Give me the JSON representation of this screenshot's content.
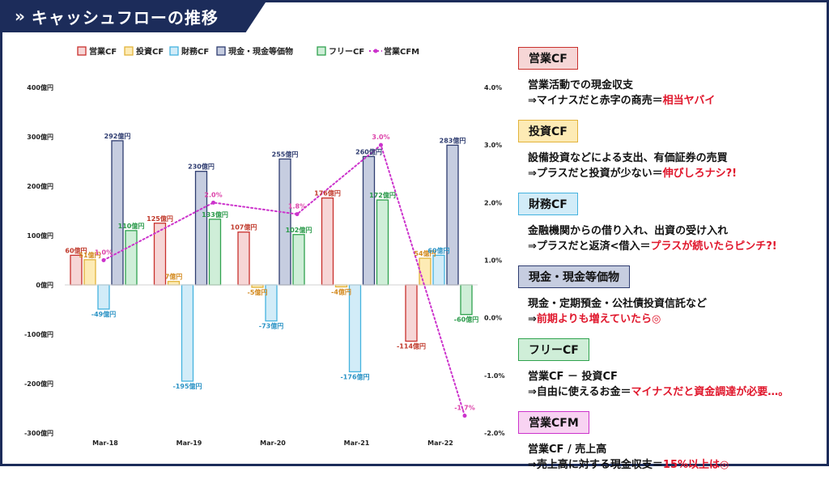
{
  "header": {
    "title": "キャッシュフローの推移",
    "chevron": "»"
  },
  "colors": {
    "operating_fill": "#f6d6d6",
    "operating_stroke": "#c9302c",
    "operating_label": "#c0392b",
    "investing_fill": "#fdebb5",
    "investing_stroke": "#e2b33b",
    "investing_label": "#d38a1f",
    "financing_fill": "#d2ecf8",
    "financing_stroke": "#45b3df",
    "financing_label": "#2b93c5",
    "cash_fill": "#c6cde0",
    "cash_stroke": "#2e3c70",
    "cash_label": "#2e3c70",
    "free_fill": "#cfeed8",
    "free_stroke": "#2fa24e",
    "free_label": "#2a9a4a",
    "cfm_line": "#cc33cc",
    "cfm_label": "#dd44aa",
    "accent": "#e0162b",
    "navy": "#1c2c5a"
  },
  "chart_data": {
    "type": "bar",
    "categories": [
      "Mar-18",
      "Mar-19",
      "Mar-20",
      "Mar-21",
      "Mar-22"
    ],
    "series": [
      {
        "name": "営業CF",
        "values": [
          60,
          125,
          107,
          176,
          -114
        ],
        "labels": [
          "60億円",
          "125億円",
          "107億円",
          "176億円",
          "-114億円"
        ]
      },
      {
        "name": "投資CF",
        "values": [
          51,
          7,
          -5,
          -4,
          54
        ],
        "labels": [
          "51億円",
          "7億円",
          "-5億円",
          "-4億円",
          "54億円"
        ]
      },
      {
        "name": "財務CF",
        "values": [
          -49,
          -195,
          -73,
          -176,
          60
        ],
        "labels": [
          "-49億円",
          "-195億円",
          "-73億円",
          "-176億円",
          "60億円"
        ]
      },
      {
        "name": "現金・現金等価物",
        "values": [
          292,
          230,
          255,
          260,
          283
        ],
        "labels": [
          "292億円",
          "230億円",
          "255億円",
          "260億円",
          "283億円"
        ]
      },
      {
        "name": "フリーCF",
        "values": [
          110,
          133,
          102,
          172,
          -60
        ],
        "labels": [
          "110億円",
          "133億円",
          "102億円",
          "172億円",
          "-60億円"
        ]
      },
      {
        "name": "営業CFM",
        "axis": "right",
        "values": [
          1.0,
          2.0,
          1.8,
          3.0,
          -1.7
        ],
        "labels": [
          "1.0%",
          "2.0%",
          "1.8%",
          "3.0%",
          "-1.7%"
        ]
      }
    ],
    "ylim": [
      -300,
      400
    ],
    "y_ticks": [
      "-300億円",
      "-200億円",
      "-100億円",
      "0億円",
      "100億円",
      "200億円",
      "300億円",
      "400億円"
    ],
    "y2lim": [
      -2.0,
      4.0
    ],
    "y2_ticks": [
      "-2.0%",
      "-1.0%",
      "0.0%",
      "1.0%",
      "2.0%",
      "3.0%",
      "4.0%"
    ],
    "legend_position": "top",
    "grid": false
  },
  "panel": {
    "items": [
      {
        "label": "営業CF",
        "fill": "#f6d6d6",
        "stroke": "#c9302c",
        "line1": "営業活動での現金収支",
        "line2_plain": "⇒マイナスだと赤字の商売＝",
        "line2_red": "相当ヤバイ"
      },
      {
        "label": "投資CF",
        "fill": "#fdebb5",
        "stroke": "#e2b33b",
        "line1": "設備投資などによる支出、有価証券の売買",
        "line2_plain": "⇒プラスだと投資が少ない＝",
        "line2_red": "伸びしろナシ?!"
      },
      {
        "label": "財務CF",
        "fill": "#d2ecf8",
        "stroke": "#45b3df",
        "line1": "金融機関からの借り入れ、出資の受け入れ",
        "line2_plain": "⇒プラスだと返済<借入＝",
        "line2_red": "プラスが続いたらピンチ?!"
      },
      {
        "label": "現金・現金等価物",
        "fill": "#c6cde0",
        "stroke": "#2e3c70",
        "line1": "現金・定期預金・公社債投資信託など",
        "line2_plain": "⇒",
        "line2_red": "前期よりも増えていたら◎"
      },
      {
        "label": "フリーCF",
        "fill": "#cfeed8",
        "stroke": "#2fa24e",
        "line1": "営業CF － 投資CF",
        "line2_plain": "⇒自由に使えるお金＝",
        "line2_red": "マイナスだと資金調達が必要…。"
      },
      {
        "label": "営業CFM",
        "fill": "#f8d3f2",
        "stroke": "#cc33cc",
        "line1": "営業CF / 売上高",
        "line2_plain": "⇒売上高に対する現金収支＝",
        "line2_red": "15%以上は◎"
      }
    ]
  }
}
